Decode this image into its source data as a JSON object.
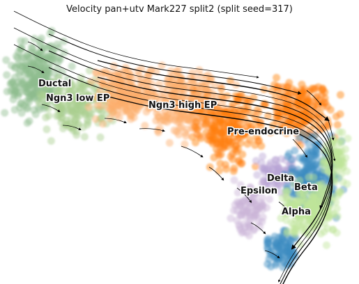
{
  "chart_data": {
    "type": "scatter",
    "title": "Velocity pan+utv Mark227 split2 (split seed=317)",
    "xlabel": "",
    "ylabel": "",
    "axes_visible": false,
    "grid": false,
    "overlay": "velocity streamlines (black arrows)",
    "categories": [
      {
        "name": "Ductal",
        "color": "#8fbc8f"
      },
      {
        "name": "Ngn3 low EP",
        "color": "#a9cf8f"
      },
      {
        "name": "Ngn3 high EP",
        "color": "#fdae6b"
      },
      {
        "name": "Pre-endocrine",
        "color": "#ff7f0e"
      },
      {
        "name": "Delta",
        "color": "#b8a4d4"
      },
      {
        "name": "Epsilon",
        "color": "#c9b3d6"
      },
      {
        "name": "Beta",
        "color": "#3b8bc2"
      },
      {
        "name": "Alpha",
        "color": "#bfe49a"
      }
    ]
  }
}
